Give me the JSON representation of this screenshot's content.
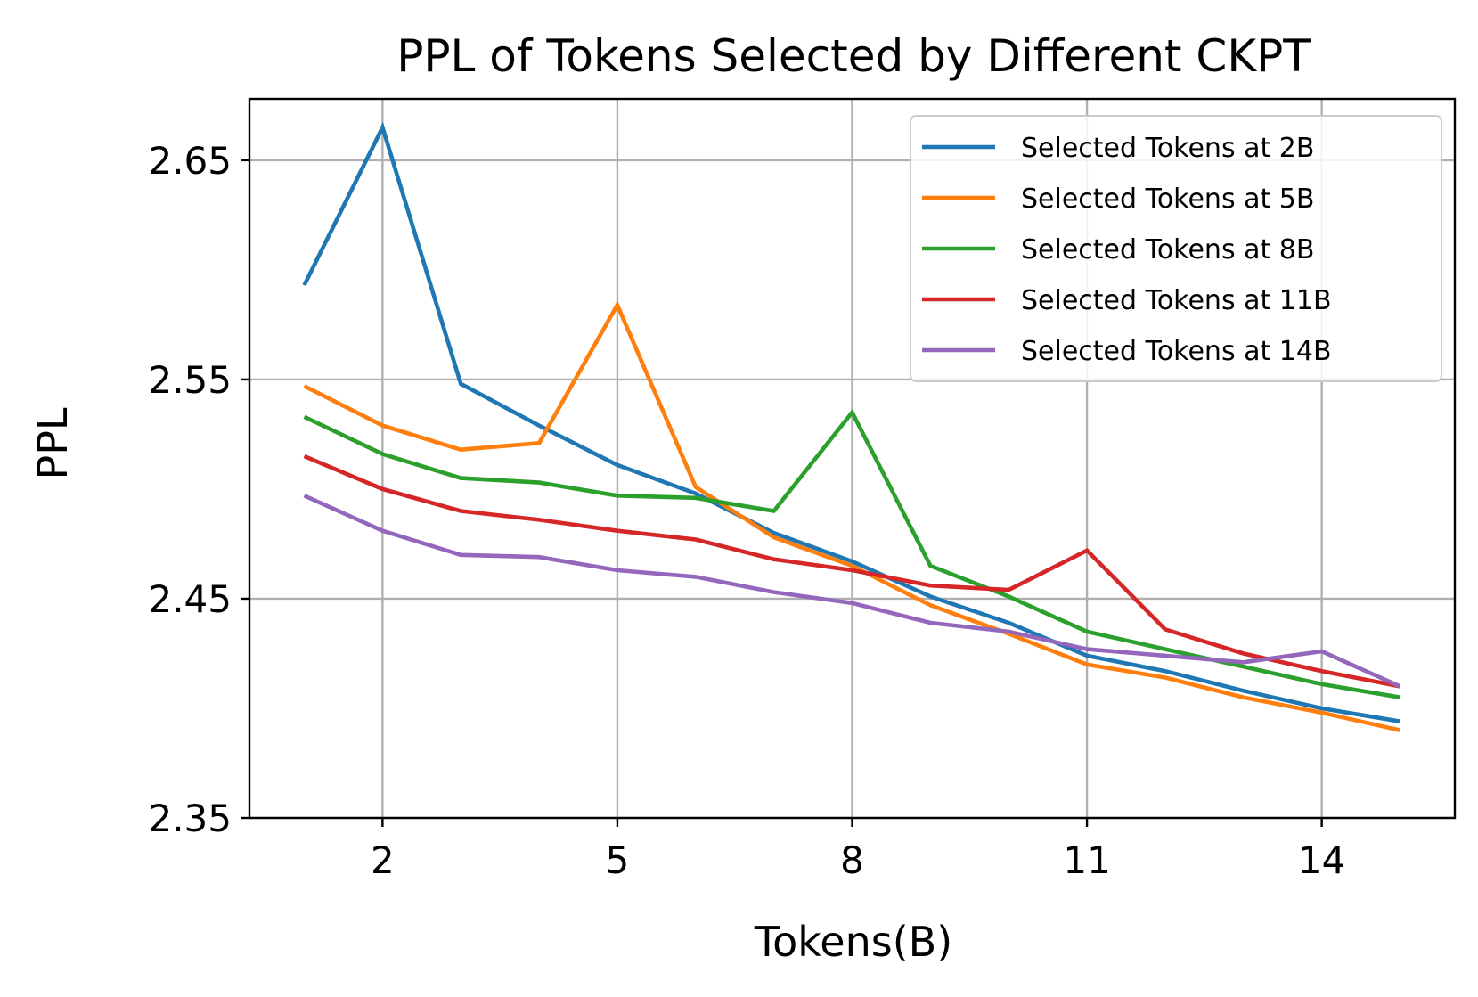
{
  "chart_data": {
    "type": "line",
    "title": "PPL of Tokens Selected by Different CKPT",
    "xlabel": "Tokens(B)",
    "ylabel": "PPL",
    "x": [
      1,
      2,
      3,
      4,
      5,
      6,
      7,
      8,
      9,
      10,
      11,
      12,
      13,
      14,
      15
    ],
    "xlim": [
      0.3,
      15.7
    ],
    "ylim": [
      2.35,
      2.678
    ],
    "xticks": [
      2,
      5,
      8,
      11,
      14
    ],
    "xtick_labels": [
      "2",
      "5",
      "8",
      "11",
      "14"
    ],
    "yticks": [
      2.35,
      2.45,
      2.55,
      2.65
    ],
    "ytick_labels": [
      "2.35",
      "2.45",
      "2.55",
      "2.65"
    ],
    "grid": true,
    "legend_position": "top-right",
    "series": [
      {
        "name": "Selected Tokens at 2B",
        "color": "#1f77b4",
        "values": [
          2.593,
          2.665,
          2.548,
          2.529,
          2.511,
          2.498,
          2.48,
          2.467,
          2.451,
          2.439,
          2.424,
          2.417,
          2.408,
          2.4,
          2.394
        ]
      },
      {
        "name": "Selected Tokens at 5B",
        "color": "#ff7f0e",
        "values": [
          2.547,
          2.529,
          2.518,
          2.521,
          2.584,
          2.501,
          2.478,
          2.465,
          2.447,
          2.434,
          2.42,
          2.414,
          2.405,
          2.398,
          2.39
        ]
      },
      {
        "name": "Selected Tokens at 8B",
        "color": "#2ca02c",
        "values": [
          2.533,
          2.516,
          2.505,
          2.503,
          2.497,
          2.496,
          2.49,
          2.535,
          2.465,
          2.451,
          2.435,
          2.427,
          2.419,
          2.411,
          2.405
        ]
      },
      {
        "name": "Selected Tokens at 11B",
        "color": "#d62728",
        "values": [
          2.515,
          2.5,
          2.49,
          2.486,
          2.481,
          2.477,
          2.468,
          2.463,
          2.456,
          2.454,
          2.472,
          2.436,
          2.425,
          2.417,
          2.41
        ]
      },
      {
        "name": "Selected Tokens at 14B",
        "color": "#9467bd",
        "values": [
          2.497,
          2.481,
          2.47,
          2.469,
          2.463,
          2.46,
          2.453,
          2.448,
          2.439,
          2.435,
          2.427,
          2.424,
          2.421,
          2.426,
          2.41
        ]
      }
    ]
  }
}
